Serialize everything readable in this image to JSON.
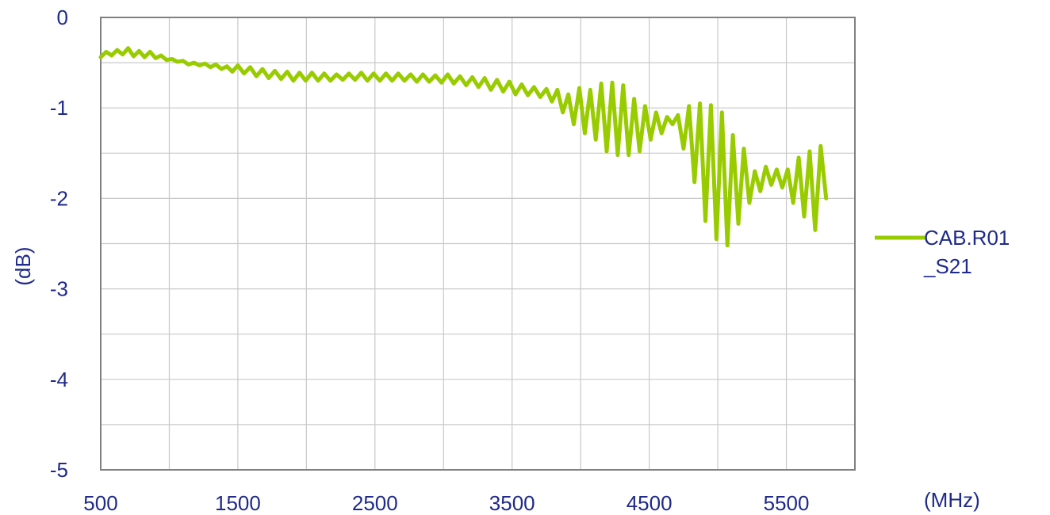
{
  "chart_data": {
    "type": "line",
    "xlabel": "(MHz)",
    "ylabel": "(dB)",
    "xlim": [
      500,
      6000
    ],
    "ylim": [
      -5,
      0
    ],
    "x_ticks": [
      500,
      1500,
      2500,
      3500,
      4500,
      5500
    ],
    "y_ticks": [
      0,
      -1,
      -2,
      -3,
      -4,
      -5
    ],
    "x_minor_step": 500,
    "y_minor_step": 0.5,
    "grid": true,
    "legend_position": "right",
    "series": [
      {
        "name": "CAB.R01_S21",
        "color": "#99cc00",
        "points": [
          [
            500,
            -0.44
          ],
          [
            540,
            -0.38
          ],
          [
            580,
            -0.42
          ],
          [
            620,
            -0.36
          ],
          [
            660,
            -0.41
          ],
          [
            700,
            -0.34
          ],
          [
            740,
            -0.43
          ],
          [
            780,
            -0.37
          ],
          [
            820,
            -0.44
          ],
          [
            860,
            -0.38
          ],
          [
            900,
            -0.45
          ],
          [
            940,
            -0.42
          ],
          [
            980,
            -0.47
          ],
          [
            1020,
            -0.46
          ],
          [
            1060,
            -0.49
          ],
          [
            1100,
            -0.48
          ],
          [
            1140,
            -0.52
          ],
          [
            1180,
            -0.5
          ],
          [
            1220,
            -0.53
          ],
          [
            1260,
            -0.51
          ],
          [
            1300,
            -0.55
          ],
          [
            1340,
            -0.52
          ],
          [
            1380,
            -0.57
          ],
          [
            1420,
            -0.54
          ],
          [
            1460,
            -0.6
          ],
          [
            1500,
            -0.53
          ],
          [
            1545,
            -0.62
          ],
          [
            1590,
            -0.55
          ],
          [
            1635,
            -0.65
          ],
          [
            1680,
            -0.57
          ],
          [
            1725,
            -0.67
          ],
          [
            1770,
            -0.59
          ],
          [
            1815,
            -0.68
          ],
          [
            1860,
            -0.6
          ],
          [
            1905,
            -0.7
          ],
          [
            1950,
            -0.61
          ],
          [
            1995,
            -0.7
          ],
          [
            2040,
            -0.61
          ],
          [
            2085,
            -0.7
          ],
          [
            2130,
            -0.62
          ],
          [
            2175,
            -0.7
          ],
          [
            2220,
            -0.63
          ],
          [
            2265,
            -0.69
          ],
          [
            2310,
            -0.62
          ],
          [
            2355,
            -0.69
          ],
          [
            2400,
            -0.61
          ],
          [
            2445,
            -0.7
          ],
          [
            2490,
            -0.62
          ],
          [
            2535,
            -0.7
          ],
          [
            2580,
            -0.62
          ],
          [
            2625,
            -0.7
          ],
          [
            2670,
            -0.62
          ],
          [
            2715,
            -0.7
          ],
          [
            2760,
            -0.63
          ],
          [
            2805,
            -0.71
          ],
          [
            2850,
            -0.63
          ],
          [
            2895,
            -0.71
          ],
          [
            2940,
            -0.64
          ],
          [
            2985,
            -0.72
          ],
          [
            3030,
            -0.63
          ],
          [
            3075,
            -0.73
          ],
          [
            3120,
            -0.65
          ],
          [
            3165,
            -0.75
          ],
          [
            3210,
            -0.66
          ],
          [
            3255,
            -0.77
          ],
          [
            3300,
            -0.67
          ],
          [
            3345,
            -0.8
          ],
          [
            3390,
            -0.69
          ],
          [
            3435,
            -0.82
          ],
          [
            3480,
            -0.71
          ],
          [
            3525,
            -0.85
          ],
          [
            3570,
            -0.74
          ],
          [
            3615,
            -0.86
          ],
          [
            3660,
            -0.77
          ],
          [
            3705,
            -0.88
          ],
          [
            3750,
            -0.79
          ],
          [
            3790,
            -0.93
          ],
          [
            3830,
            -0.8
          ],
          [
            3870,
            -1.05
          ],
          [
            3910,
            -0.85
          ],
          [
            3950,
            -1.18
          ],
          [
            3990,
            -0.78
          ],
          [
            4030,
            -1.28
          ],
          [
            4070,
            -0.8
          ],
          [
            4110,
            -1.35
          ],
          [
            4150,
            -0.73
          ],
          [
            4190,
            -1.48
          ],
          [
            4230,
            -0.72
          ],
          [
            4270,
            -1.52
          ],
          [
            4310,
            -0.75
          ],
          [
            4350,
            -1.52
          ],
          [
            4390,
            -0.9
          ],
          [
            4430,
            -1.48
          ],
          [
            4470,
            -0.98
          ],
          [
            4510,
            -1.35
          ],
          [
            4550,
            -1.05
          ],
          [
            4590,
            -1.28
          ],
          [
            4630,
            -1.1
          ],
          [
            4670,
            -1.18
          ],
          [
            4710,
            -1.08
          ],
          [
            4750,
            -1.45
          ],
          [
            4790,
            -0.98
          ],
          [
            4830,
            -1.82
          ],
          [
            4870,
            -0.95
          ],
          [
            4910,
            -2.25
          ],
          [
            4950,
            -0.97
          ],
          [
            4990,
            -2.45
          ],
          [
            5030,
            -1.05
          ],
          [
            5070,
            -2.52
          ],
          [
            5110,
            -1.3
          ],
          [
            5150,
            -2.28
          ],
          [
            5190,
            -1.45
          ],
          [
            5230,
            -2.05
          ],
          [
            5270,
            -1.7
          ],
          [
            5310,
            -1.92
          ],
          [
            5350,
            -1.65
          ],
          [
            5390,
            -1.85
          ],
          [
            5430,
            -1.68
          ],
          [
            5470,
            -1.88
          ],
          [
            5510,
            -1.68
          ],
          [
            5550,
            -2.05
          ],
          [
            5590,
            -1.55
          ],
          [
            5630,
            -2.2
          ],
          [
            5670,
            -1.48
          ],
          [
            5710,
            -2.35
          ],
          [
            5750,
            -1.42
          ],
          [
            5790,
            -2.0
          ]
        ]
      }
    ]
  }
}
